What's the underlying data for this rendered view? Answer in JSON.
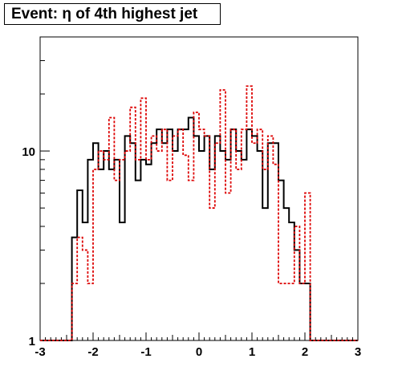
{
  "chart_data": {
    "type": "histogram",
    "title": "Event: η of 4th highest jet",
    "xlabel": "",
    "ylabel": "",
    "xlim": [
      -3,
      3
    ],
    "ylim": [
      1,
      40
    ],
    "yscale": "log",
    "x_ticks": [
      -3,
      -2,
      -1,
      0,
      1,
      2,
      3
    ],
    "x_tick_labels": [
      "-3",
      "-2",
      "-1",
      "0",
      "1",
      "2",
      "3"
    ],
    "y_ticks": [
      1,
      10
    ],
    "y_tick_labels": [
      "1",
      "10"
    ],
    "bin_edges": [
      -3,
      -2.9,
      -2.8,
      -2.7,
      -2.6,
      -2.5,
      -2.4,
      -2.3,
      -2.2,
      -2.1,
      -2.0,
      -1.9,
      -1.8,
      -1.7,
      -1.6,
      -1.5,
      -1.4,
      -1.3,
      -1.2,
      -1.1,
      -1.0,
      -0.9,
      -0.8,
      -0.7,
      -0.6,
      -0.5,
      -0.4,
      -0.3,
      -0.2,
      -0.1,
      0.0,
      0.1,
      0.2,
      0.3,
      0.4,
      0.5,
      0.6,
      0.7,
      0.8,
      0.9,
      1.0,
      1.1,
      1.2,
      1.3,
      1.4,
      1.5,
      1.6,
      1.7,
      1.8,
      1.9,
      2.0,
      2.1,
      2.2,
      2.3,
      2.4,
      2.5,
      2.6,
      2.7,
      2.8,
      2.9,
      3.0
    ],
    "series": [
      {
        "style": "solid",
        "color": "#000000",
        "values": [
          1,
          1,
          1,
          1,
          1,
          1,
          3.5,
          6.2,
          4.2,
          9.0,
          11.0,
          8.0,
          10.0,
          8.0,
          9.0,
          4.2,
          12.0,
          11.0,
          7.0,
          9.0,
          8.5,
          11.0,
          13.0,
          11.0,
          13.0,
          10.0,
          13.0,
          13.0,
          15.0,
          12.0,
          10.0,
          12.0,
          8.0,
          12.0,
          10.0,
          9.0,
          13.0,
          10.0,
          9.0,
          13.0,
          12.0,
          10.0,
          5.0,
          11.0,
          11.0,
          7.0,
          5.0,
          4.2,
          3.0,
          2.0,
          2.0,
          1,
          1,
          1,
          1,
          1,
          1,
          1,
          1,
          1
        ]
      },
      {
        "style": "dashed",
        "color": "#dd0000",
        "values": [
          1,
          1,
          1,
          1,
          1,
          1,
          2.0,
          3.5,
          3.0,
          2.0,
          8.0,
          10.0,
          9.0,
          15.0,
          7.0,
          9.0,
          10.0,
          17.0,
          9.0,
          19.0,
          9.0,
          12.0,
          10.0,
          13.0,
          7.0,
          12.0,
          13.0,
          9.5,
          7.0,
          16.0,
          13.0,
          12.0,
          5.0,
          11.0,
          21.0,
          6.0,
          13.0,
          8.0,
          13.0,
          22.0,
          11.0,
          13.0,
          8.0,
          12.0,
          8.5,
          2.0,
          2.0,
          2.0,
          4.0,
          2.0,
          6.0,
          1,
          1,
          1,
          1,
          1,
          1,
          1,
          1,
          1
        ]
      }
    ]
  }
}
